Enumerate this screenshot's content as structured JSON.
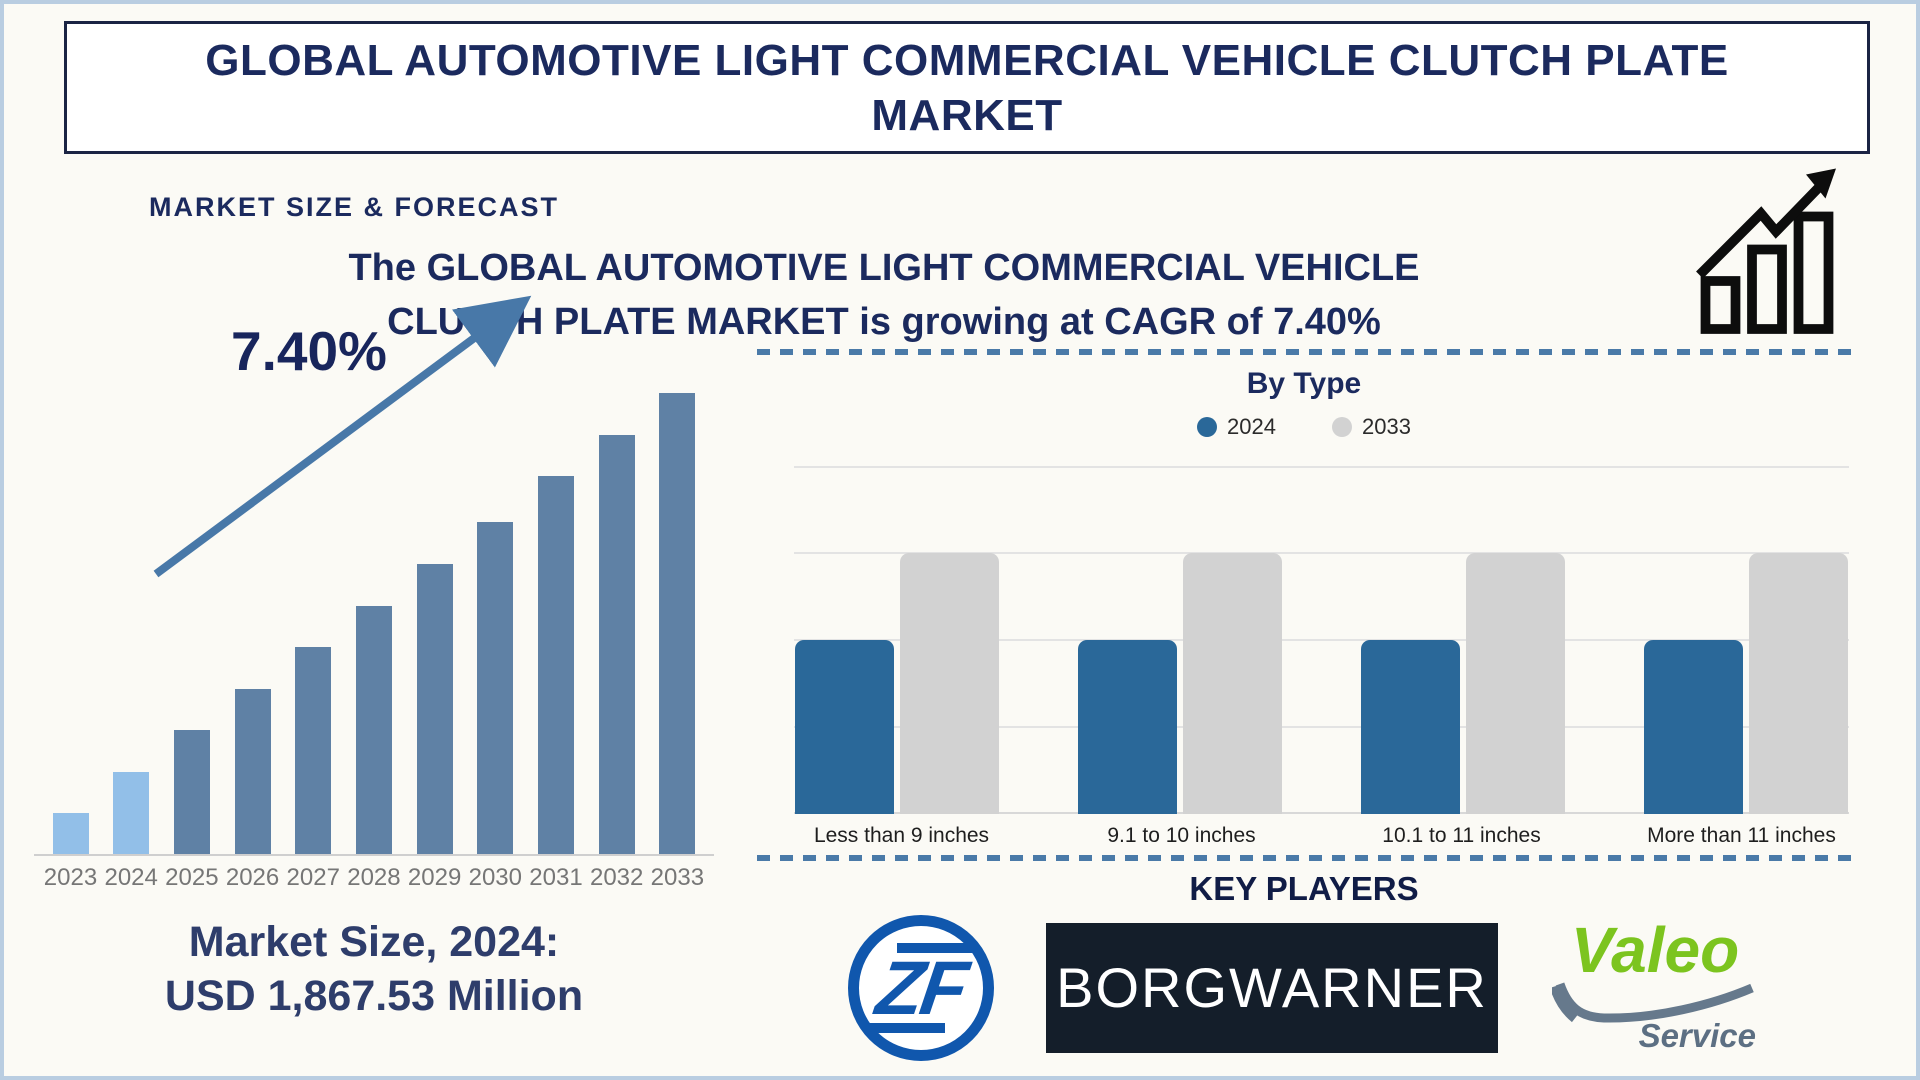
{
  "header": {
    "title_line1": "GLOBAL AUTOMOTIVE LIGHT COMMERCIAL VEHICLE CLUTCH PLATE",
    "title_line2": "MARKET"
  },
  "forecast_section": {
    "heading": "MARKET SIZE & FORECAST",
    "subtitle_line1": "The GLOBAL AUTOMOTIVE LIGHT COMMERCIAL VEHICLE",
    "subtitle_line2": "CLUTCH PLATE MARKET is growing at CAGR of 7.40%",
    "cagr_label": "7.40%",
    "market_size_line1": "Market Size, 2024:",
    "market_size_line2": "USD 1,867.53 Million"
  },
  "by_type_section": {
    "title": "By Type"
  },
  "key_players": {
    "heading": "KEY PLAYERS",
    "zf_label": "ZF",
    "borgwarner_label": "BORGWARNER",
    "valeo_label": "Valeo",
    "valeo_sub_label": "Service"
  },
  "colors": {
    "navy_text": "#1b2a5e",
    "steel_bar": "#5f81a5",
    "light_bar": "#92bfe8",
    "arrow_blue": "#4878a8",
    "type_2024_blue": "#2a6899",
    "type_2033_gray": "#d2d2d2",
    "zf_blue": "#1057ad",
    "valeo_green": "#7cc41f",
    "borgwarner_bg": "#141e2a",
    "page_border": "#b9cde1"
  },
  "chart_data": [
    {
      "type": "bar",
      "title": "Market Size & Forecast (CAGR 7.40%)",
      "categories": [
        "2023",
        "2024",
        "2025",
        "2026",
        "2027",
        "2028",
        "2029",
        "2030",
        "2031",
        "2032",
        "2033"
      ],
      "values_relative_height_pct": [
        9,
        18,
        27,
        36,
        45,
        54,
        63,
        72,
        82,
        91,
        100
      ],
      "light_highlight_years": [
        "2023",
        "2024"
      ],
      "annotation": "7.40%",
      "known_point": {
        "year": "2024",
        "value": "USD 1,867.53 Million"
      },
      "xlabel": "",
      "ylabel": "",
      "grid": false,
      "legend_position": "none"
    },
    {
      "type": "bar",
      "title": "By Type",
      "categories": [
        "Less than 9 inches",
        "9.1 to 10 inches",
        "10.1 to 11 inches",
        "More than 11 inches"
      ],
      "series": [
        {
          "name": "2024",
          "color": "#2a6899",
          "values_relative_height_pct": [
            50,
            50,
            50,
            50
          ]
        },
        {
          "name": "2033",
          "color": "#d2d2d2",
          "values_relative_height_pct": [
            75,
            75,
            75,
            75
          ]
        }
      ],
      "legend_position": "top",
      "grid": true,
      "gridlines_pct": [
        0,
        25,
        50,
        75,
        100
      ],
      "xlabel": "",
      "ylabel": ""
    }
  ]
}
